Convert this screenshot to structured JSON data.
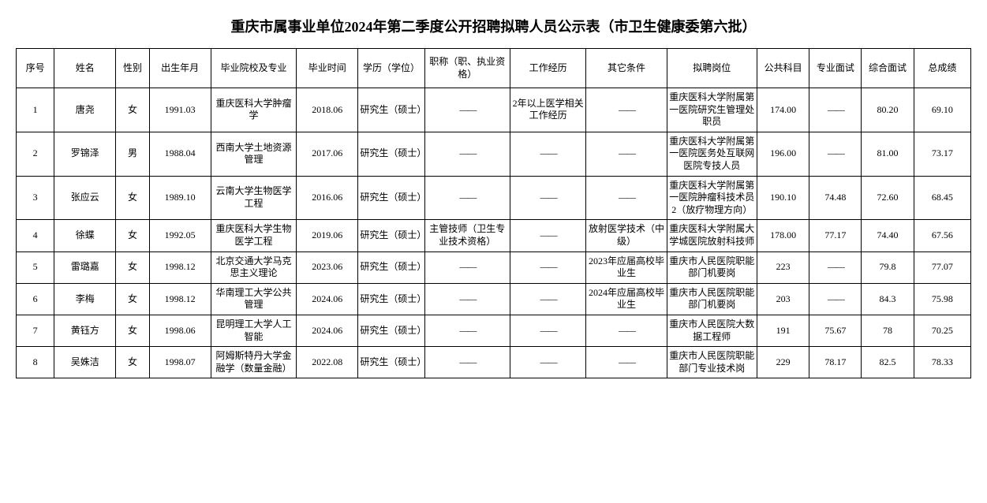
{
  "title": "重庆市属事业单位2024年第二季度公开招聘拟聘人员公示表（市卫生健康委第六批）",
  "columns": [
    "序号",
    "姓名",
    "性别",
    "出生年月",
    "毕业院校及专业",
    "毕业时间",
    "学历（学位）",
    "职称（职、执业资格）",
    "工作经历",
    "其它条件",
    "拟聘岗位",
    "公共科目",
    "专业面试",
    "综合面试",
    "总成绩"
  ],
  "dash": "——",
  "rows": [
    {
      "seq": "1",
      "name": "唐尧",
      "gender": "女",
      "birth": "1991.03",
      "school": "重庆医科大学肿瘤学",
      "gradtime": "2018.06",
      "edu": "研究生（硕士）",
      "jobtitle": "——",
      "workexp": "2年以上医学相关工作经历",
      "other": "——",
      "position": "重庆医科大学附属第一医院研究生管理处职员",
      "public": "174.00",
      "prof": "——",
      "comp": "80.20",
      "total": "69.10"
    },
    {
      "seq": "2",
      "name": "罗锦泽",
      "gender": "男",
      "birth": "1988.04",
      "school": "西南大学土地资源管理",
      "gradtime": "2017.06",
      "edu": "研究生（硕士）",
      "jobtitle": "——",
      "workexp": "——",
      "other": "——",
      "position": "重庆医科大学附属第一医院医务处互联网医院专技人员",
      "public": "196.00",
      "prof": "——",
      "comp": "81.00",
      "total": "73.17"
    },
    {
      "seq": "3",
      "name": "张应云",
      "gender": "女",
      "birth": "1989.10",
      "school": "云南大学生物医学工程",
      "gradtime": "2016.06",
      "edu": "研究生（硕士）",
      "jobtitle": "——",
      "workexp": "——",
      "other": "——",
      "position": "重庆医科大学附属第一医院肿瘤科技术员2（放疗物理方向）",
      "public": "190.10",
      "prof": "74.48",
      "comp": "72.60",
      "total": "68.45"
    },
    {
      "seq": "4",
      "name": "徐蝶",
      "gender": "女",
      "birth": "1992.05",
      "school": "重庆医科大学生物医学工程",
      "gradtime": "2019.06",
      "edu": "研究生（硕士）",
      "jobtitle": "主管技师（卫生专业技术资格）",
      "workexp": "——",
      "other": "放射医学技术（中级）",
      "position": "重庆医科大学附属大学城医院放射科技师",
      "public": "178.00",
      "prof": "77.17",
      "comp": "74.40",
      "total": "67.56"
    },
    {
      "seq": "5",
      "name": "雷璐嘉",
      "gender": "女",
      "birth": "1998.12",
      "school": "北京交通大学马克思主义理论",
      "gradtime": "2023.06",
      "edu": "研究生（硕士）",
      "jobtitle": "——",
      "workexp": "——",
      "other": "2023年应届高校毕业生",
      "position": "重庆市人民医院职能部门机要岗",
      "public": "223",
      "prof": "——",
      "comp": "79.8",
      "total": "77.07"
    },
    {
      "seq": "6",
      "name": "李梅",
      "gender": "女",
      "birth": "1998.12",
      "school": "华南理工大学公共管理",
      "gradtime": "2024.06",
      "edu": "研究生（硕士）",
      "jobtitle": "——",
      "workexp": "——",
      "other": "2024年应届高校毕业生",
      "position": "重庆市人民医院职能部门机要岗",
      "public": "203",
      "prof": "——",
      "comp": "84.3",
      "total": "75.98"
    },
    {
      "seq": "7",
      "name": "黄钰方",
      "gender": "女",
      "birth": "1998.06",
      "school": "昆明理工大学人工智能",
      "gradtime": "2024.06",
      "edu": "研究生（硕士）",
      "jobtitle": "——",
      "workexp": "——",
      "other": "——",
      "position": "重庆市人民医院大数据工程师",
      "public": "191",
      "prof": "75.67",
      "comp": "78",
      "total": "70.25"
    },
    {
      "seq": "8",
      "name": "吴姝洁",
      "gender": "女",
      "birth": "1998.07",
      "school": "阿姆斯特丹大学金融学（数量金融）",
      "gradtime": "2022.08",
      "edu": "研究生（硕士）",
      "jobtitle": "——",
      "workexp": "——",
      "other": "——",
      "position": "重庆市人民医院职能部门专业技术岗",
      "public": "229",
      "prof": "78.17",
      "comp": "82.5",
      "total": "78.33"
    }
  ]
}
